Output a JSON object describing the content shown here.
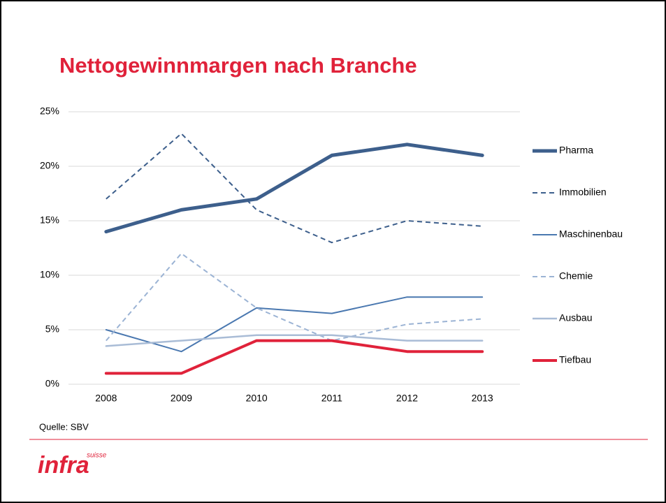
{
  "chart_data": {
    "type": "line",
    "title": "Nettogewinnmargen nach Branche",
    "categories": [
      "2008",
      "2009",
      "2010",
      "2011",
      "2012",
      "2013"
    ],
    "series": [
      {
        "name": "Pharma",
        "color": "#3d5f8c",
        "width": 5,
        "dashed": false,
        "values": [
          14,
          16,
          17,
          21,
          22,
          21
        ]
      },
      {
        "name": "Immobilien",
        "color": "#3d5f8c",
        "width": 2,
        "dashed": true,
        "values": [
          17,
          23,
          16,
          13,
          15,
          14.5
        ]
      },
      {
        "name": "Maschinenbau",
        "color": "#4a78b0",
        "width": 2,
        "dashed": false,
        "values": [
          5,
          3,
          7,
          6.5,
          8,
          8
        ]
      },
      {
        "name": "Chemie",
        "color": "#9bb3d4",
        "width": 2,
        "dashed": true,
        "values": [
          4,
          12,
          7,
          4,
          5.5,
          6
        ]
      },
      {
        "name": "Ausbau",
        "color": "#a9bcd6",
        "width": 2.5,
        "dashed": false,
        "values": [
          3.5,
          4,
          4.5,
          4.5,
          4,
          4
        ]
      },
      {
        "name": "Tiefbau",
        "color": "#e0223a",
        "width": 4,
        "dashed": false,
        "values": [
          1,
          1,
          4,
          4,
          3,
          3
        ]
      }
    ],
    "ylim": [
      0,
      25
    ],
    "yticks": [
      {
        "value": 0,
        "label": "0%"
      },
      {
        "value": 5,
        "label": "5%"
      },
      {
        "value": 10,
        "label": "10%"
      },
      {
        "value": 15,
        "label": "15%"
      },
      {
        "value": 20,
        "label": "20%"
      },
      {
        "value": 25,
        "label": "25%"
      }
    ],
    "grid": true,
    "legend": "right"
  },
  "source": "Quelle: SBV",
  "logo": {
    "main": "infra",
    "sub": "suisse"
  }
}
